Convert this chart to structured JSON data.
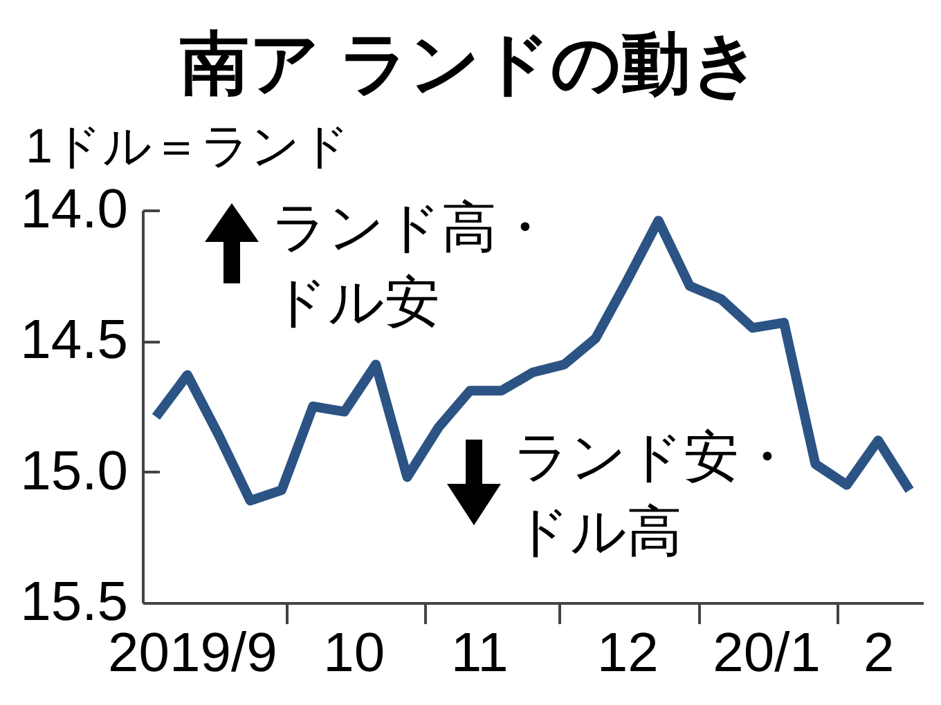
{
  "chart_data": {
    "type": "line",
    "title": "南ア ランドの動き",
    "ylabel": "1ドル＝ランド",
    "annotations": [
      "ランド高・ドル安",
      "ランド安・ドル高"
    ],
    "x": [
      "2019-09-02",
      "2019-09-09",
      "2019-09-16",
      "2019-09-23",
      "2019-09-30",
      "2019-10-07",
      "2019-10-14",
      "2019-10-21",
      "2019-10-28",
      "2019-11-04",
      "2019-11-11",
      "2019-11-18",
      "2019-11-25",
      "2019-12-02",
      "2019-12-09",
      "2019-12-16",
      "2019-12-23",
      "2019-12-30",
      "2020-01-06",
      "2020-01-13",
      "2020-01-20",
      "2020-01-27",
      "2020-02-03",
      "2020-02-10",
      "2020-02-17"
    ],
    "values": [
      14.79,
      14.63,
      14.86,
      15.11,
      15.07,
      14.75,
      14.77,
      14.59,
      15.02,
      14.83,
      14.69,
      14.69,
      14.62,
      14.59,
      14.49,
      14.27,
      14.04,
      14.29,
      14.34,
      14.45,
      14.43,
      14.97,
      15.05,
      14.88,
      15.07
    ],
    "color": "#2b5384",
    "xlim": [
      "2019-08-30",
      "2020-02-20"
    ],
    "xticks": [
      {
        "value": "2019-09-10",
        "label": "2019/9"
      },
      {
        "value": "2019-10-01",
        "label": null
      },
      {
        "value": "2019-10-16",
        "label": "10"
      },
      {
        "value": "2019-11-01",
        "label": null
      },
      {
        "value": "2019-11-13",
        "label": "11"
      },
      {
        "value": "2019-12-01",
        "label": null
      },
      {
        "value": "2019-12-16",
        "label": "12"
      },
      {
        "value": "2020-01-01",
        "label": null
      },
      {
        "value": "2020-01-16",
        "label": "20/1"
      },
      {
        "value": "2020-02-01",
        "label": null
      },
      {
        "value": "2020-02-10",
        "label": "2"
      }
    ],
    "ylim": [
      15.5,
      14.0
    ],
    "yticks": [
      {
        "value": 14,
        "label": "14.0"
      },
      14.5,
      {
        "value": 15,
        "label": "15.0"
      },
      15.5
    ],
    "grid": false,
    "marker": "none",
    "line_style": "solid"
  }
}
